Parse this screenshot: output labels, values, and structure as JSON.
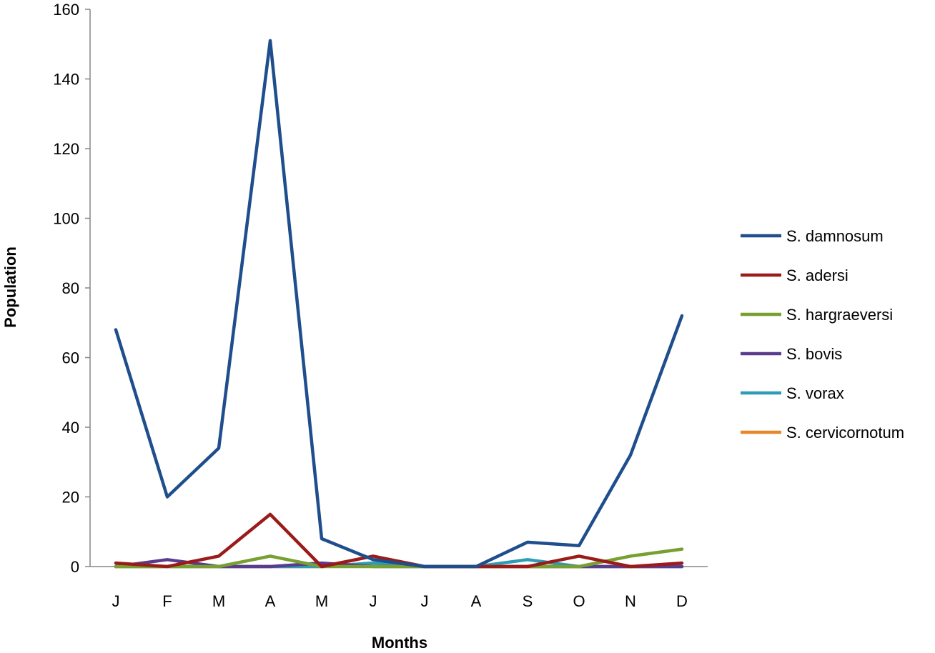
{
  "chart_data": {
    "type": "line",
    "title": "",
    "xlabel": "Months",
    "ylabel": "Population",
    "categories": [
      "J",
      "F",
      "M",
      "A",
      "M",
      "J",
      "J",
      "A",
      "S",
      "O",
      "N",
      "D"
    ],
    "ylim": [
      0,
      160
    ],
    "yticks": [
      0,
      20,
      40,
      60,
      80,
      100,
      120,
      140,
      160
    ],
    "grid": false,
    "legend_position": "right",
    "series": [
      {
        "name": "S. damnosum",
        "color": "#1F4E8C",
        "values": [
          68,
          20,
          34,
          151,
          8,
          2,
          0,
          0,
          7,
          6,
          32,
          72
        ]
      },
      {
        "name": "S. adersi",
        "color": "#9B1B1B",
        "values": [
          1,
          0,
          3,
          15,
          0,
          3,
          0,
          0,
          0,
          3,
          0,
          1
        ]
      },
      {
        "name": "S. hargraeversi",
        "color": "#77A030",
        "values": [
          0,
          0,
          0,
          3,
          0,
          0,
          0,
          0,
          0,
          0,
          3,
          5
        ]
      },
      {
        "name": "S. bovis",
        "color": "#5B3B8C",
        "values": [
          0,
          2,
          0,
          0,
          1,
          0,
          0,
          0,
          0,
          0,
          0,
          0
        ]
      },
      {
        "name": "S. vorax",
        "color": "#2C9DB5",
        "values": [
          0,
          0,
          0,
          0,
          0,
          1,
          0,
          0,
          2,
          0,
          0,
          0
        ]
      },
      {
        "name": "S. cervicornotum",
        "color": "#E8862A",
        "values": [
          0,
          0,
          0,
          0,
          0,
          1,
          0,
          0,
          0,
          0,
          0,
          0
        ]
      }
    ]
  }
}
